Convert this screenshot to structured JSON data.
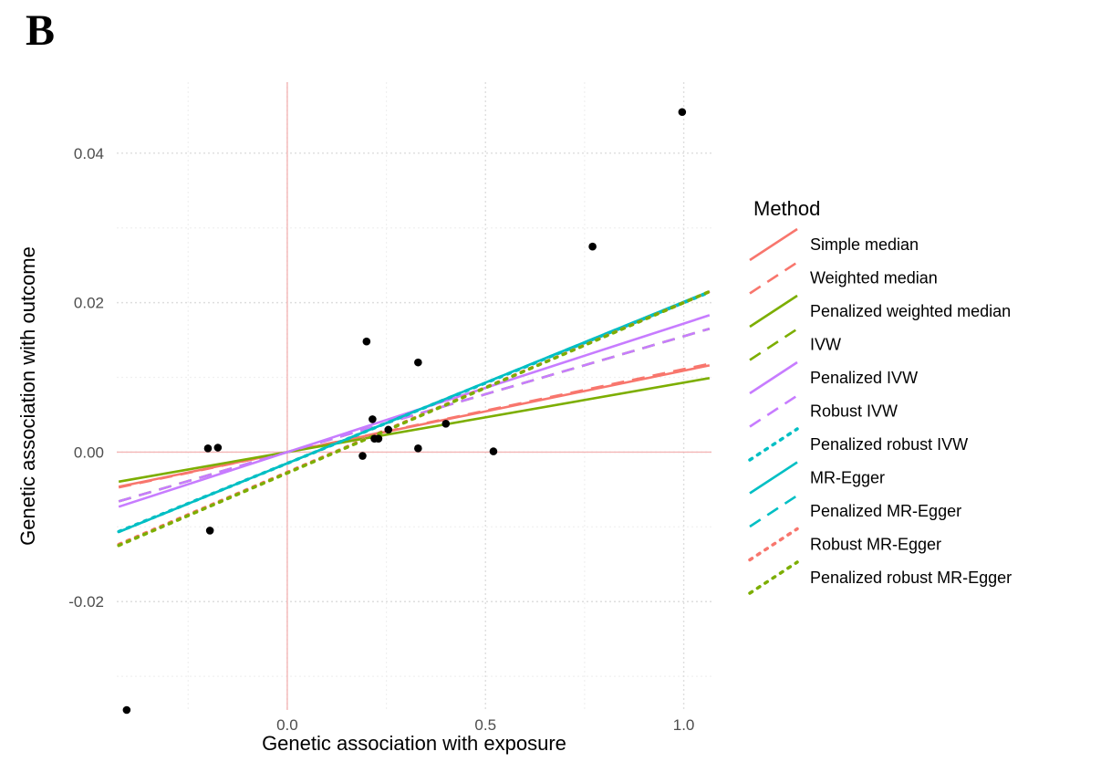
{
  "panel_label": "B",
  "chart_data": {
    "type": "scatter",
    "xlabel": "Genetic association with exposure",
    "ylabel": "Genetic association with outcome",
    "xlim": [
      -0.43,
      1.07
    ],
    "ylim": [
      -0.0345,
      0.0495
    ],
    "x_ticks": [
      {
        "value": 0.0,
        "label": "0.0"
      },
      {
        "value": 0.5,
        "label": "0.5"
      },
      {
        "value": 1.0,
        "label": "1.0"
      }
    ],
    "y_ticks": [
      {
        "value": 0.04,
        "label": "0.04"
      },
      {
        "value": 0.02,
        "label": "0.02"
      },
      {
        "value": 0.0,
        "label": "0.00"
      },
      {
        "value": -0.02,
        "label": "-0.02"
      }
    ],
    "minor_x": [
      -0.25,
      0.25,
      0.75
    ],
    "minor_y": [
      -0.03,
      -0.01,
      0.01,
      0.03
    ],
    "points": [
      {
        "x": 0.996,
        "y": 0.0455
      },
      {
        "x": 0.77,
        "y": 0.0275
      },
      {
        "x": 0.2,
        "y": 0.0148
      },
      {
        "x": 0.33,
        "y": 0.012
      },
      {
        "x": 0.215,
        "y": 0.0044
      },
      {
        "x": 0.4,
        "y": 0.0038
      },
      {
        "x": 0.255,
        "y": 0.003
      },
      {
        "x": 0.22,
        "y": 0.0018
      },
      {
        "x": 0.23,
        "y": 0.0018
      },
      {
        "x": 0.19,
        "y": -0.0005
      },
      {
        "x": 0.33,
        "y": 0.0005
      },
      {
        "x": 0.52,
        "y": 0.0001
      },
      {
        "x": -0.2,
        "y": 0.0005
      },
      {
        "x": -0.175,
        "y": 0.0006
      },
      {
        "x": -0.195,
        "y": -0.0105
      },
      {
        "x": -0.405,
        "y": -0.0345
      }
    ],
    "legend": {
      "title": "Method",
      "position": "right",
      "entries": [
        {
          "label": "Simple median",
          "color": "#F8766D",
          "dash": "solid"
        },
        {
          "label": "Weighted median",
          "color": "#F8766D",
          "dash": "dashed"
        },
        {
          "label": "Penalized weighted median",
          "color": "#7CAE00",
          "dash": "solid"
        },
        {
          "label": "IVW",
          "color": "#7CAE00",
          "dash": "dashed"
        },
        {
          "label": "Penalized IVW",
          "color": "#C77CFF",
          "dash": "solid"
        },
        {
          "label": "Robust IVW",
          "color": "#C77CFF",
          "dash": "dashed"
        },
        {
          "label": "Penalized robust IVW",
          "color": "#00BFC4",
          "dash": "dotted"
        },
        {
          "label": "MR-Egger",
          "color": "#00BFC4",
          "dash": "solid"
        },
        {
          "label": "Penalized MR-Egger",
          "color": "#00BFC4",
          "dash": "dashed"
        },
        {
          "label": "Robust MR-Egger",
          "color": "#F8766D",
          "dash": "dotted"
        },
        {
          "label": "Penalized robust MR-Egger",
          "color": "#7CAE00",
          "dash": "dotted"
        }
      ]
    },
    "series": [
      {
        "label": "Simple median",
        "intercept": 0.0,
        "slope": 0.0109,
        "color": "#F8766D",
        "dash": "solid"
      },
      {
        "label": "Weighted median",
        "intercept": 0.0,
        "slope": 0.0111,
        "color": "#F8766D",
        "dash": "dashed"
      },
      {
        "label": "Penalized weighted median",
        "intercept": 0.0,
        "slope": 0.0093,
        "color": "#7CAE00",
        "dash": "solid"
      },
      {
        "label": "IVW",
        "intercept": 0.0,
        "slope": 0.0155,
        "color": "#7CAE00",
        "dash": "dashed"
      },
      {
        "label": "Penalized IVW",
        "intercept": 0.0,
        "slope": 0.0172,
        "color": "#C77CFF",
        "dash": "solid"
      },
      {
        "label": "Robust IVW",
        "intercept": 0.0,
        "slope": 0.0155,
        "color": "#C77CFF",
        "dash": "dashed"
      },
      {
        "label": "Penalized robust IVW",
        "intercept": -0.0015,
        "slope": 0.0215,
        "color": "#00BFC4",
        "dash": "dotted"
      },
      {
        "label": "MR-Egger",
        "intercept": -0.0015,
        "slope": 0.0216,
        "color": "#00BFC4",
        "dash": "solid"
      },
      {
        "label": "Penalized MR-Egger",
        "intercept": -0.0015,
        "slope": 0.0216,
        "color": "#00BFC4",
        "dash": "dashed"
      },
      {
        "label": "Robust MR-Egger",
        "intercept": -0.0027,
        "slope": 0.0227,
        "color": "#F8766D",
        "dash": "dotted"
      },
      {
        "label": "Penalized robust MR-Egger",
        "intercept": -0.0028,
        "slope": 0.0228,
        "color": "#7CAE00",
        "dash": "dotted"
      }
    ],
    "reference_lines": {
      "x": 0,
      "y": 0,
      "color": "#F4B6B6"
    },
    "grid": true
  }
}
